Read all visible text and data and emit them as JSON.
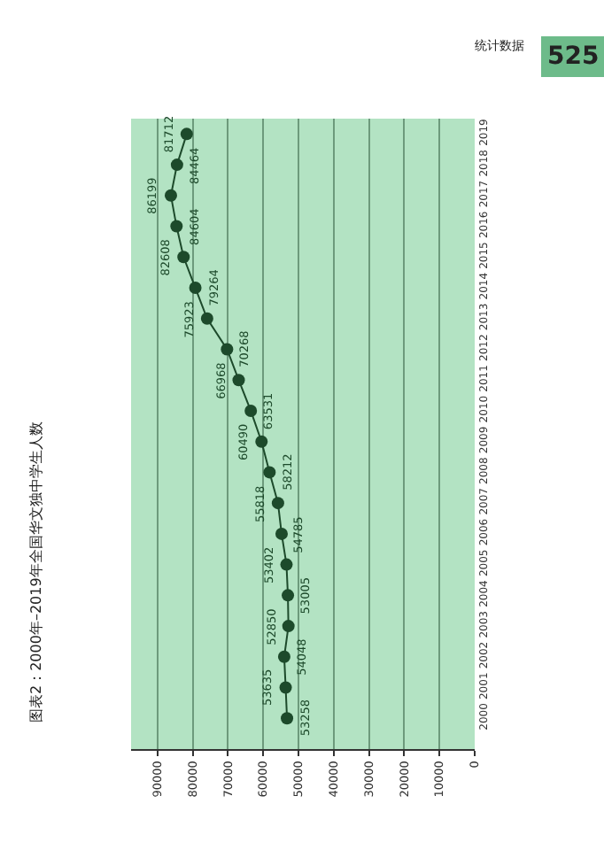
{
  "chart_data": {
    "type": "line",
    "orientation": "horizontal",
    "title": "图表2：2000年–2019年全国华文独中学生人数",
    "annotations": [
      "统计数据",
      "525"
    ],
    "categories": [
      "2019",
      "2018",
      "2017",
      "2016",
      "2015",
      "2014",
      "2013",
      "2012",
      "2011",
      "2010",
      "2009",
      "2008",
      "2007",
      "2006",
      "2005",
      "2004",
      "2003",
      "2002",
      "2001",
      "2000"
    ],
    "series": [
      {
        "color": "#1d4a2b",
        "values": [
          81712,
          84464,
          86199,
          84604,
          82608,
          79264,
          75923,
          70268,
          66968,
          63531,
          60490,
          58212,
          55818,
          54785,
          53402,
          53005,
          52850,
          54048,
          53635,
          53258
        ]
      }
    ],
    "xlim": [
      97500,
      0
    ],
    "xticks": [
      0,
      10000,
      20000,
      30000,
      40000,
      50000,
      60000,
      70000,
      80000,
      90000
    ],
    "grid": "x",
    "marker": "circle",
    "line_style": "solid",
    "data_labels": true
  }
}
